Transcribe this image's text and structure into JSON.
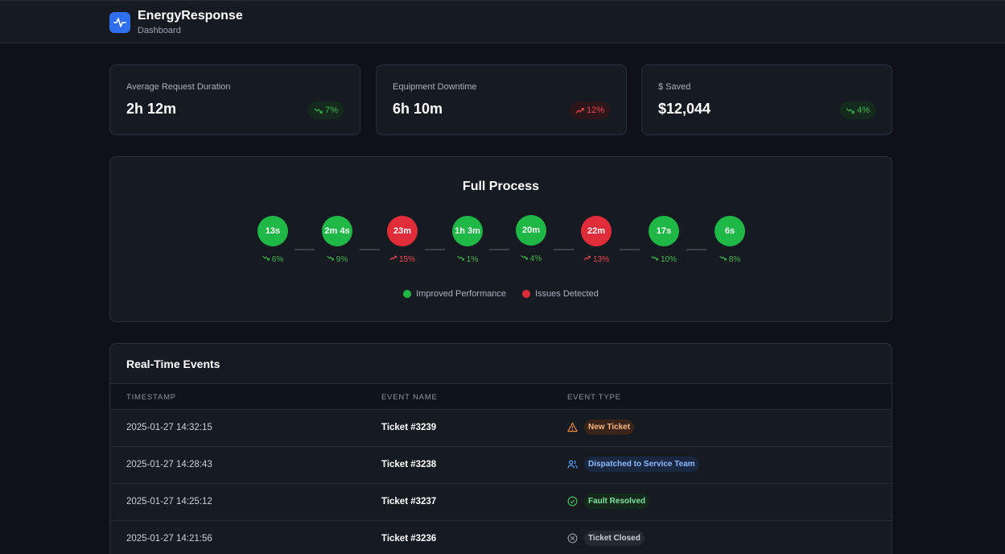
{
  "header": {
    "title": "EnergyResponse",
    "subtitle": "Dashboard",
    "logo_icon": "activity-pulse-icon"
  },
  "stats": [
    {
      "label": "Average Request Duration",
      "value": "2h 12m",
      "trend": "7%",
      "direction": "down",
      "status": "good"
    },
    {
      "label": "Equipment Downtime",
      "value": "6h 10m",
      "trend": "12%",
      "direction": "up",
      "status": "bad"
    },
    {
      "label": "$ Saved",
      "value": "$12,044",
      "trend": "4%",
      "direction": "down",
      "status": "good"
    }
  ],
  "process": {
    "title": "Full Process",
    "steps": [
      {
        "value": "13s",
        "pct": "6%",
        "status": "good",
        "direction": "down"
      },
      {
        "value": "2m 4s",
        "pct": "9%",
        "status": "good",
        "direction": "down"
      },
      {
        "value": "23m",
        "pct": "15%",
        "status": "bad",
        "direction": "up"
      },
      {
        "value": "1h 3m",
        "pct": "1%",
        "status": "good",
        "direction": "down"
      },
      {
        "value": "20m",
        "pct": "4%",
        "status": "good",
        "direction": "down"
      },
      {
        "value": "22m",
        "pct": "13%",
        "status": "bad",
        "direction": "up"
      },
      {
        "value": "17s",
        "pct": "10%",
        "status": "good",
        "direction": "down"
      },
      {
        "value": "6s",
        "pct": "8%",
        "status": "good",
        "direction": "down"
      }
    ],
    "legend": [
      {
        "label": "Improved Performance",
        "color": "#1fb847"
      },
      {
        "label": "Issues Detected",
        "color": "#e02d39"
      }
    ]
  },
  "events": {
    "title": "Real-Time Events",
    "columns": [
      "TIMESTAMP",
      "EVENT NAME",
      "EVENT TYPE"
    ],
    "rows": [
      {
        "timestamp": "2025-01-27 14:32:15",
        "name": "Ticket #3239",
        "type": "New Ticket",
        "icon": "warning-triangle-icon",
        "tone": "orange"
      },
      {
        "timestamp": "2025-01-27 14:28:43",
        "name": "Ticket #3238",
        "type": "Dispatched to Service Team",
        "icon": "users-icon",
        "tone": "blue"
      },
      {
        "timestamp": "2025-01-27 14:25:12",
        "name": "Ticket #3237",
        "type": "Fault Resolved",
        "icon": "check-circle-icon",
        "tone": "green"
      },
      {
        "timestamp": "2025-01-27 14:21:56",
        "name": "Ticket #3236",
        "type": "Ticket Closed",
        "icon": "x-circle-icon",
        "tone": "gray"
      }
    ]
  },
  "colors": {
    "good": "#1fb847",
    "bad": "#e02d39",
    "accent": "#2f6fed",
    "background": "#0d1117"
  }
}
